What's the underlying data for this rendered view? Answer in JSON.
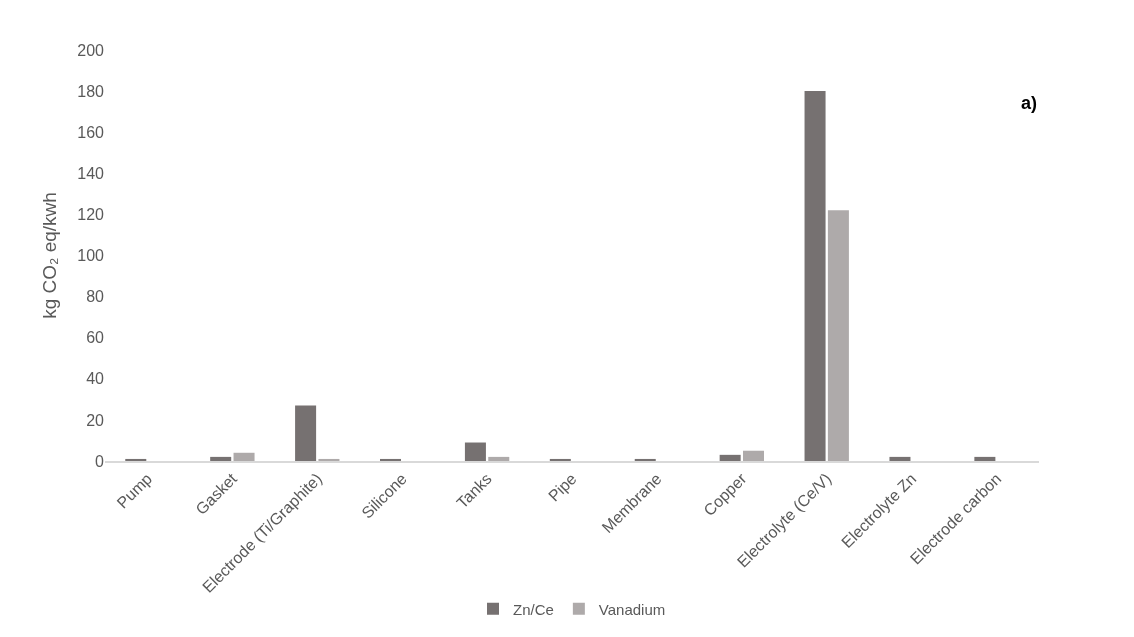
{
  "chart_data": {
    "type": "bar",
    "categories": [
      "Pump",
      "Gasket",
      "Electrode (Ti/Graphite)",
      "Silicone",
      "Tanks",
      "Pipe",
      "Membrane",
      "Copper",
      "Electrolyte (Ce/V)",
      "Electrolyte Zn",
      "Electrode carbon"
    ],
    "series": [
      {
        "name": "Zn/Ce",
        "color": "#767171",
        "values": [
          1,
          2,
          27,
          1,
          9,
          1,
          1,
          3,
          180,
          2,
          2
        ]
      },
      {
        "name": "Vanadium",
        "color": "#aeaaaa",
        "values": [
          null,
          4,
          1,
          null,
          2,
          null,
          null,
          5,
          122,
          null,
          null
        ]
      }
    ],
    "ylabel": "kg CO₂ eq/kwh",
    "ylim": [
      0,
      200
    ],
    "yticks": [
      0,
      20,
      40,
      60,
      80,
      100,
      120,
      140,
      160,
      180,
      200
    ],
    "grid": false,
    "legend": "bottom",
    "annotations": [
      "a)"
    ]
  }
}
